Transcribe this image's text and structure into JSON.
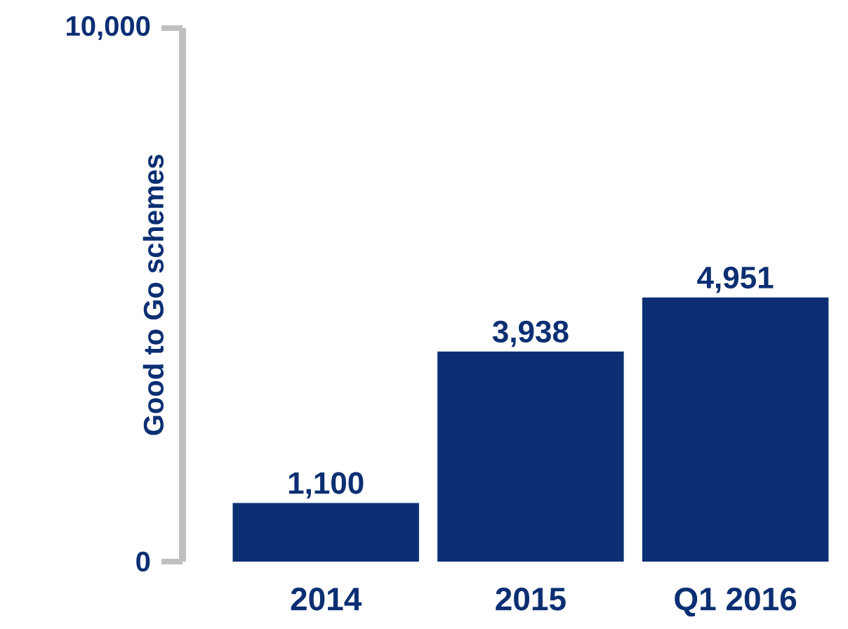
{
  "chart_data": {
    "type": "bar",
    "ylabel": "Good to Go schemes",
    "categories": [
      "2014",
      "2015",
      "Q1 2016"
    ],
    "values": [
      1100,
      3938,
      4951
    ],
    "value_labels": [
      "1,100",
      "3,938",
      "4,951"
    ],
    "color": "#0c2f73",
    "ylim": [
      0,
      10000
    ],
    "yticks": [
      {
        "value": 0,
        "label": "0"
      },
      {
        "value": 10000,
        "label": "10,000"
      }
    ]
  }
}
